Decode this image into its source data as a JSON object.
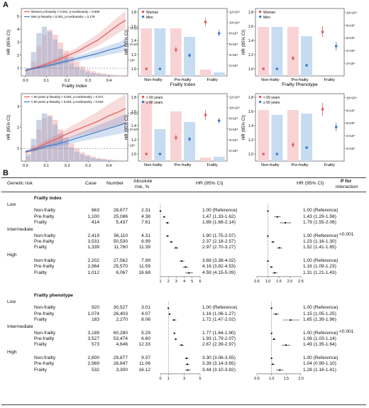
{
  "panelA": "A",
  "panelB": "B",
  "chart_data": [
    {
      "type": "line",
      "xlabel": "Frailty Index",
      "ylabel": "HR (95% CI)",
      "x_ticks": [
        "0.0",
        "0.1",
        "0.2",
        "0.3",
        "0.4"
      ],
      "y_ticks": [
        "1",
        "2",
        "3",
        "4",
        "5"
      ],
      "y2_ticks": [
        "10⁴",
        "2×10⁴",
        "3×10⁴"
      ],
      "legend": [
        {
          "name": "Women p-linearity < 0.001, p-nonlinearity = 0.009",
          "color": "#e05a5a"
        },
        {
          "name": "Men    p-linearity < 0.001, p-nonlinearity = 0.178",
          "color": "#3d78c8"
        }
      ],
      "series": [
        {
          "name": "Women",
          "x": [
            0,
            0.05,
            0.1,
            0.15,
            0.2,
            0.25,
            0.3,
            0.35,
            0.4,
            0.45,
            0.48
          ],
          "y": [
            0.8,
            1.05,
            1.3,
            1.6,
            1.95,
            2.3,
            2.75,
            3.2,
            3.8,
            4.4,
            4.7
          ]
        },
        {
          "name": "Men",
          "x": [
            0,
            0.05,
            0.1,
            0.15,
            0.2,
            0.25,
            0.3,
            0.35,
            0.4,
            0.45,
            0.48
          ],
          "y": [
            0.85,
            1.0,
            1.15,
            1.35,
            1.55,
            1.75,
            1.95,
            2.15,
            2.4,
            2.6,
            2.8
          ]
        }
      ],
      "hist_women": [
        0.3,
        0.9,
        1.9,
        2.6,
        2.9,
        2.6,
        2.1,
        1.6,
        1.2,
        0.9,
        0.6,
        0.4,
        0.3,
        0.2,
        0.15,
        0.1,
        0.07,
        0.05
      ],
      "hist_men": [
        0.5,
        1.5,
        2.7,
        3.1,
        2.8,
        2.3,
        1.7,
        1.2,
        0.8,
        0.55,
        0.4,
        0.25,
        0.18,
        0.12,
        0.08,
        0.05,
        0.03,
        0.02
      ]
    },
    {
      "type": "bar",
      "xlabel": "Frailty Index",
      "ylabel": "HR (95% CI)",
      "categories": [
        "Non-frailty",
        "Pre-frailty",
        "Frailty"
      ],
      "y_ticks": [
        "1.0",
        "1.2",
        "1.4",
        "1.6",
        "1.8"
      ],
      "y2_ticks": [
        "2×10⁴",
        "4×10⁴",
        "6×10⁴",
        "8×10⁴",
        "10×10⁴",
        "12×10⁴"
      ],
      "legend": [
        {
          "name": "Women",
          "color": "#e05a5a"
        },
        {
          "name": "Men",
          "color": "#3d78c8"
        }
      ],
      "series": [
        {
          "name": "Women",
          "values": [
            1.0,
            1.27,
            1.66
          ],
          "ci": [
            [
              1.0,
              1.0
            ],
            [
              1.23,
              1.31
            ],
            [
              1.6,
              1.72
            ]
          ]
        },
        {
          "name": "Men",
          "values": [
            1.0,
            1.19,
            1.5
          ],
          "ci": [
            [
              1.0,
              1.0
            ],
            [
              1.16,
              1.22
            ],
            [
              1.46,
              1.55
            ]
          ]
        }
      ],
      "bars": [
        [
          1.57,
          1.57
        ],
        [
          1.57,
          1.45
        ],
        [
          0.99,
          0.95
        ]
      ]
    },
    {
      "type": "bar",
      "xlabel": "Frailty Phenotype",
      "ylabel": "HR (95% CI)",
      "categories": [
        "Non-frailty",
        "Pre-frailty",
        "Frailty"
      ],
      "y_ticks": [
        "1.0",
        "1.2",
        "1.4",
        "1.6",
        "1.8"
      ],
      "y2_ticks": [
        "2×10⁴",
        "4×10⁴",
        "6×10⁴",
        "8×10⁴",
        "10×10⁴"
      ],
      "legend": [
        {
          "name": "Women",
          "color": "#e05a5a"
        },
        {
          "name": "Men",
          "color": "#3d78c8"
        }
      ],
      "series": [
        {
          "name": "Women",
          "values": [
            1.0,
            1.15,
            1.52
          ],
          "ci": [
            [
              1.0,
              1.0
            ],
            [
              1.12,
              1.18
            ],
            [
              1.45,
              1.6
            ]
          ]
        },
        {
          "name": "Men",
          "values": [
            1.0,
            1.05,
            1.32
          ],
          "ci": [
            [
              1.0,
              1.0
            ],
            [
              1.03,
              1.07
            ],
            [
              1.26,
              1.38
            ]
          ]
        }
      ],
      "bars": [
        [
          1.59,
          1.59
        ],
        [
          1.59,
          1.46
        ],
        [
          0.87,
          0.86
        ]
      ]
    },
    {
      "type": "line",
      "xlabel": "Frailty Index",
      "ylabel": "HR (95% CI)",
      "x_ticks": [
        "0.0",
        "0.1",
        "0.2",
        "0.3",
        "0.4"
      ],
      "y_ticks": [
        "1",
        "2",
        "3"
      ],
      "y2_ticks": [
        "10⁴",
        "2×10⁴",
        "3×10⁴"
      ],
      "legend": [
        {
          "name": "< 60 years  p-linearity < 0.001, p-nonlinearity = 0.071",
          "color": "#e05a5a"
        },
        {
          "name": "≥ 60 years  p-linearity < 0.001, p-nonlinearity = 0.015",
          "color": "#3d78c8"
        }
      ],
      "series": [
        {
          "name": "< 60 years",
          "x": [
            0,
            0.05,
            0.1,
            0.15,
            0.2,
            0.25,
            0.3,
            0.35,
            0.4,
            0.45,
            0.48
          ],
          "y": [
            0.8,
            1.0,
            1.25,
            1.45,
            1.7,
            1.9,
            2.1,
            2.3,
            2.55,
            2.75,
            2.9
          ]
        },
        {
          "name": "≥ 60 years",
          "x": [
            0,
            0.05,
            0.1,
            0.15,
            0.2,
            0.25,
            0.3,
            0.35,
            0.4,
            0.45,
            0.48
          ],
          "y": [
            0.85,
            0.95,
            1.1,
            1.2,
            1.35,
            1.5,
            1.65,
            1.8,
            1.95,
            2.1,
            2.2
          ]
        }
      ],
      "hist_women": [
        0.3,
        1.0,
        2.0,
        2.7,
        2.9,
        2.6,
        2.0,
        1.5,
        1.1,
        0.8,
        0.55,
        0.4,
        0.28,
        0.2,
        0.14,
        0.1,
        0.07,
        0.05
      ],
      "hist_men": [
        0.45,
        1.4,
        2.6,
        3.0,
        2.8,
        2.3,
        1.7,
        1.2,
        0.85,
        0.6,
        0.42,
        0.3,
        0.2,
        0.14,
        0.1,
        0.07,
        0.05,
        0.03
      ]
    },
    {
      "type": "bar",
      "xlabel": "Frailty Index",
      "ylabel": "HR (95% CI)",
      "categories": [
        "Non-frailty",
        "Pre-frailty",
        "Frailty"
      ],
      "y_ticks": [
        "1.0",
        "1.2",
        "1.4",
        "1.6",
        "1.8"
      ],
      "y2_ticks": [
        "2×10⁴",
        "4×10⁴",
        "6×10⁴",
        "8×10⁴",
        "10×10⁴",
        "12×10⁴"
      ],
      "legend": [
        {
          "name": "< 60 years",
          "color": "#e05a5a"
        },
        {
          "name": "≥ 60 years",
          "color": "#3d78c8"
        }
      ],
      "series": [
        {
          "name": "< 60 years",
          "values": [
            1.0,
            1.23,
            1.55
          ],
          "ci": [
            [
              1.0,
              1.0
            ],
            [
              1.19,
              1.27
            ],
            [
              1.48,
              1.62
            ]
          ]
        },
        {
          "name": "≥ 60 years",
          "values": [
            1.0,
            1.21,
            1.47
          ],
          "ci": [
            [
              1.0,
              1.0
            ],
            [
              1.18,
              1.24
            ],
            [
              1.43,
              1.51
            ]
          ]
        }
      ],
      "bars": [
        [
          1.75,
          1.35
        ],
        [
          1.6,
          1.45
        ],
        [
          0.95,
          0.96
        ]
      ]
    },
    {
      "type": "bar",
      "xlabel": "Frailty Phenotype",
      "ylabel": "HR (95% CI)",
      "categories": [
        "Non-frailty",
        "Pre-frailty",
        "Frailty"
      ],
      "y_ticks": [
        "1.0",
        "1.2",
        "1.4",
        "1.6",
        "1.8"
      ],
      "y2_ticks": [
        "2×10⁴",
        "4×10⁴",
        "6×10⁴",
        "8×10⁴",
        "10×10⁴"
      ],
      "legend": [
        {
          "name": "< 60 years",
          "color": "#e05a5a"
        },
        {
          "name": "≥ 60 years",
          "color": "#3d78c8"
        }
      ],
      "series": [
        {
          "name": "< 60 years",
          "values": [
            1.0,
            1.13,
            1.63
          ],
          "ci": [
            [
              1.0,
              1.0
            ],
            [
              1.09,
              1.17
            ],
            [
              1.54,
              1.72
            ]
          ]
        },
        {
          "name": "≥ 60 years",
          "values": [
            1.0,
            1.09,
            1.38
          ],
          "ci": [
            [
              1.0,
              1.0
            ],
            [
              1.07,
              1.11
            ],
            [
              1.32,
              1.44
            ]
          ]
        }
      ],
      "bars": [
        [
          1.62,
          1.55
        ],
        [
          1.62,
          1.57
        ],
        [
          0.87,
          0.87
        ]
      ]
    }
  ],
  "table": {
    "headers": {
      "genetic_risk": "Genetic risk",
      "case": "Case",
      "number": "Number",
      "abs_risk_1": "Absolute",
      "abs_risk_2": "risk, %",
      "hr1": "HR (95% CI)",
      "hr2": "HR (95% CI)",
      "p1": "P for",
      "p2": "interaction"
    },
    "sections": [
      {
        "title": "Frailty index",
        "p_value": "<0.001",
        "groups": [
          {
            "risk": "Low",
            "rows": [
              {
                "label": "Non-frailty",
                "case": "663",
                "number": "28,677",
                "abs": "2.31",
                "hr1": "1.00 (Reference)",
                "hr2": "1.00 (Reference)",
                "e1": 1.0,
                "l1": 1.0,
                "u1": 1.0,
                "e2": 1.0,
                "l2": 1.0,
                "u2": 1.0
              },
              {
                "label": "Pre-frailty",
                "case": "1,100",
                "number": "25,086",
                "abs": "4.38",
                "hr1": "1.47 (1.33-1.62)",
                "hr2": "1.43 (1.29-1.58)",
                "e1": 1.47,
                "l1": 1.33,
                "u1": 1.62,
                "e2": 1.43,
                "l2": 1.29,
                "u2": 1.58
              },
              {
                "label": "Frailty",
                "case": "414",
                "number": "5,437",
                "abs": "7.61",
                "hr1": "1.89 (1.66-2.14)",
                "hr2": "1.79 (1.55-2.06)",
                "e1": 1.89,
                "l1": 1.66,
                "u1": 2.14,
                "e2": 1.79,
                "l2": 1.55,
                "u2": 2.06
              }
            ]
          },
          {
            "risk": "Intermediate",
            "rows": [
              {
                "label": "Non-frailty",
                "case": "2,419",
                "number": "56,110",
                "abs": "4.31",
                "hr1": "1.90 (1.75-2.07)",
                "hr2": "1.00 (Reference)",
                "e1": 1.9,
                "l1": 1.75,
                "u1": 2.07,
                "e2": 1.0,
                "l2": 1.0,
                "u2": 1.0
              },
              {
                "label": "Pre-frailty",
                "case": "3,531",
                "number": "50,530",
                "abs": "6.99",
                "hr1": "2.37 (2.18-2.57)",
                "hr2": "1.23 (1.16-1.30)",
                "e1": 2.37,
                "l1": 2.18,
                "u1": 2.57,
                "e2": 1.23,
                "l2": 1.16,
                "u2": 1.3
              },
              {
                "label": "Frailty",
                "case": "1,339",
                "number": "11,760",
                "abs": "11.39",
                "hr1": "2.97 (2.70-3.27)",
                "hr2": "1.52 (1.41-1.65)",
                "e1": 2.97,
                "l1": 2.7,
                "u1": 3.27,
                "e2": 1.52,
                "l2": 1.41,
                "u2": 1.65
              }
            ]
          },
          {
            "risk": "High",
            "rows": [
              {
                "label": "Non-frailty",
                "case": "2,202",
                "number": "27,562",
                "abs": "7.99",
                "hr1": "3.69 (3.38-4.02)",
                "hr2": "1.00 (Reference)",
                "e1": 3.69,
                "l1": 3.38,
                "u1": 4.02,
                "e2": 1.0,
                "l2": 1.0,
                "u2": 1.0
              },
              {
                "label": "Pre-frailty",
                "case": "2,964",
                "number": "25,570",
                "abs": "11.59",
                "hr1": "4.16 (3.82-4.53)",
                "hr2": "1.16 (1.09-1.23)",
                "e1": 4.16,
                "l1": 3.82,
                "u1": 4.53,
                "e2": 1.16,
                "l2": 1.09,
                "u2": 1.23
              },
              {
                "label": "Frailty",
                "case": "1,012",
                "number": "6,067",
                "abs": "16.68",
                "hr1": "4.59 (4.15-5.09)",
                "hr2": "1.31 (1.21-1.43)",
                "e1": 4.59,
                "l1": 4.15,
                "u1": 5.09,
                "e2": 1.31,
                "l2": 1.21,
                "u2": 1.43
              }
            ]
          }
        ],
        "axis1_ticks": [
          "1",
          "2",
          "3",
          "4",
          "5",
          "6"
        ],
        "axis2_ticks": [
          "0.5",
          "1.0",
          "1.5",
          "2.0",
          "2.5"
        ]
      },
      {
        "title": "Frailty phenotype",
        "p_value": "<0.001",
        "groups": [
          {
            "risk": "Low",
            "rows": [
              {
                "label": "Non-frailty",
                "case": "920",
                "number": "30,527",
                "abs": "3.01",
                "hr1": "1.00 (Reference)",
                "hr2": "1.00 (Reference)",
                "e1": 1.0,
                "l1": 1.0,
                "u1": 1.0,
                "e2": 1.0,
                "l2": 1.0,
                "u2": 1.0
              },
              {
                "label": "Pre-frailty",
                "case": "1,074",
                "number": "26,403",
                "abs": "4.07",
                "hr1": "1.16 (1.06-1.27)",
                "hr2": "1.15 (1.05-1.25)",
                "e1": 1.16,
                "l1": 1.06,
                "u1": 1.27,
                "e2": 1.15,
                "l2": 1.05,
                "u2": 1.25
              },
              {
                "label": "Frailty",
                "case": "183",
                "number": "2,270",
                "abs": "8.06",
                "hr1": "1.72 (1.47-2.02)",
                "hr2": "1.65 (1.39-1.96)",
                "e1": 1.72,
                "l1": 1.47,
                "u1": 2.02,
                "e2": 1.65,
                "l2": 1.39,
                "u2": 1.96
              }
            ]
          },
          {
            "risk": "Intermediate",
            "rows": [
              {
                "label": "Non-frailty",
                "case": "3,189",
                "number": "60,280",
                "abs": "5.29",
                "hr1": "1.77 (1.64-1.90)",
                "hr2": "1.00 (Reference)",
                "e1": 1.77,
                "l1": 1.64,
                "u1": 1.9,
                "e2": 1.0,
                "l2": 1.0,
                "u2": 1.0
              },
              {
                "label": "Pre-frailty",
                "case": "3,527",
                "number": "53,474",
                "abs": "6.60",
                "hr1": "1.93 (1.79-2.07)",
                "hr2": "1.08 (1.03-1.14)",
                "e1": 1.93,
                "l1": 1.79,
                "u1": 2.07,
                "e2": 1.08,
                "l2": 1.03,
                "u2": 1.14
              },
              {
                "label": "Frailty",
                "case": "573",
                "number": "4,646",
                "abs": "12.33",
                "hr1": "2.67 (2.39-2.97)",
                "hr2": "1.49 (1.35-1.64)",
                "e1": 2.67,
                "l1": 2.39,
                "u1": 2.97,
                "e2": 1.49,
                "l2": 1.35,
                "u2": 1.64
              }
            ]
          },
          {
            "risk": "High",
            "rows": [
              {
                "label": "Non-frailty",
                "case": "2,800",
                "number": "29,877",
                "abs": "9.37",
                "hr1": "3.30 (3.06-3.55)",
                "hr2": "1.00 (Reference)",
                "e1": 3.3,
                "l1": 3.06,
                "u1": 3.55,
                "e2": 1.0,
                "l2": 1.0,
                "u2": 1.0
              },
              {
                "label": "Pre-frailty",
                "case": "2,969",
                "number": "26,847",
                "abs": "11.06",
                "hr1": "3.39 (3.14-3.65)",
                "hr2": "1.04 (0.99-1.10)",
                "e1": 3.39,
                "l1": 3.14,
                "u1": 3.65,
                "e2": 1.04,
                "l2": 0.99,
                "u2": 1.1
              },
              {
                "label": "Frailty",
                "case": "532",
                "number": "3,300",
                "abs": "16.12",
                "hr1": "3.44 (3.10-3.82)",
                "hr2": "1.28 (1.16-1.41)",
                "e1": 3.44,
                "l1": 3.1,
                "u1": 3.82,
                "e2": 1.28,
                "l2": 1.16,
                "u2": 1.41
              }
            ]
          }
        ],
        "axis1_ticks": [
          "0",
          "1",
          "3",
          "5"
        ],
        "axis2_ticks": [
          "0.5",
          "1.0",
          "1.5",
          "2.0"
        ]
      }
    ]
  }
}
